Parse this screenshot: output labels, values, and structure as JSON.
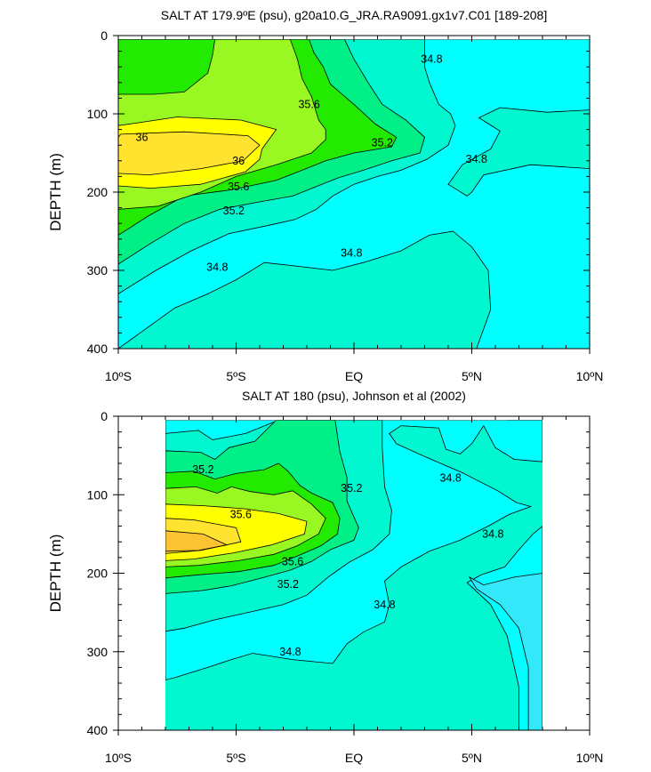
{
  "chart_data": [
    {
      "type": "contour",
      "title": "SALT AT 179.9ºE (psu), g20a10.G_JRA.RA9091.gx1v7.C01 [189-208]",
      "ylabel": "DEPTH (m)",
      "xlabel": "",
      "xlim": [
        -10,
        10
      ],
      "ylim": [
        0,
        400
      ],
      "y_inverted": true,
      "x_ticks": [
        {
          "value": -10,
          "label": "10ºS"
        },
        {
          "value": -5,
          "label": "5ºS"
        },
        {
          "value": 0,
          "label": "EQ"
        },
        {
          "value": 5,
          "label": "5ºN"
        },
        {
          "value": 10,
          "label": "10ºN"
        }
      ],
      "y_ticks": [
        {
          "value": 0,
          "label": "0"
        },
        {
          "value": 100,
          "label": "100"
        },
        {
          "value": 200,
          "label": "200"
        },
        {
          "value": 300,
          "label": "300"
        },
        {
          "value": 400,
          "label": "400"
        }
      ],
      "data_extent": {
        "x": [
          -10,
          10
        ],
        "y": [
          5,
          400
        ]
      },
      "contour_levels": [
        34.6,
        34.8,
        35.0,
        35.2,
        35.4,
        35.6,
        35.8,
        36.0,
        36.2
      ],
      "fill_colors": {
        "34.6": "#33e8f8",
        "34.8": "#00ffff",
        "35.0": "#00f7cf",
        "35.2": "#00f087",
        "35.4": "#22ea00",
        "35.6": "#99f722",
        "35.8": "#ffff00",
        "36.0": "#ffe32e",
        "36.2": "#fbc232"
      },
      "contour_labels": [
        {
          "text": "36",
          "x": -9.0,
          "y": 130
        },
        {
          "text": "36",
          "x": -4.9,
          "y": 160
        },
        {
          "text": "35.6",
          "x": -1.9,
          "y": 88
        },
        {
          "text": "35.6",
          "x": -4.9,
          "y": 193
        },
        {
          "text": "35.2",
          "x": 1.2,
          "y": 137
        },
        {
          "text": "35.2",
          "x": -5.1,
          "y": 224
        },
        {
          "text": "34.8",
          "x": 3.3,
          "y": 30
        },
        {
          "text": "34.8",
          "x": 5.2,
          "y": 158
        },
        {
          "text": "34.8",
          "x": -0.1,
          "y": 278
        },
        {
          "text": "34.8",
          "x": -5.8,
          "y": 296
        }
      ]
    },
    {
      "type": "contour",
      "title": "SALT AT 180 (psu), Johnson et al (2002)",
      "ylabel": "DEPTH (m)",
      "xlabel": "",
      "xlim": [
        -10,
        10
      ],
      "ylim": [
        0,
        400
      ],
      "y_inverted": true,
      "x_ticks": [
        {
          "value": -10,
          "label": "10ºS"
        },
        {
          "value": -5,
          "label": "5ºS"
        },
        {
          "value": 0,
          "label": "EQ"
        },
        {
          "value": 5,
          "label": "5ºN"
        },
        {
          "value": 10,
          "label": "10ºN"
        }
      ],
      "y_ticks": [
        {
          "value": 0,
          "label": "0"
        },
        {
          "value": 100,
          "label": "100"
        },
        {
          "value": 200,
          "label": "200"
        },
        {
          "value": 300,
          "label": "300"
        },
        {
          "value": 400,
          "label": "400"
        }
      ],
      "data_extent": {
        "x": [
          -8,
          8
        ],
        "y": [
          5,
          400
        ]
      },
      "contour_levels": [
        34.6,
        34.8,
        35.0,
        35.2,
        35.4,
        35.6,
        35.8,
        36.0,
        36.2
      ],
      "fill_colors": {
        "34.6": "#33e8f8",
        "34.8": "#00ffff",
        "35.0": "#00f7cf",
        "35.2": "#00f087",
        "35.4": "#22ea00",
        "35.6": "#99f722",
        "35.8": "#ffff00",
        "36.0": "#ffe32e",
        "36.2": "#fbc232"
      },
      "contour_labels": [
        {
          "text": "35.2",
          "x": -6.4,
          "y": 68
        },
        {
          "text": "35.6",
          "x": -4.8,
          "y": 125
        },
        {
          "text": "35.6",
          "x": -2.6,
          "y": 185
        },
        {
          "text": "35.2",
          "x": -2.8,
          "y": 214
        },
        {
          "text": "35.2",
          "x": -0.1,
          "y": 92
        },
        {
          "text": "34.8",
          "x": 4.1,
          "y": 79
        },
        {
          "text": "34.8",
          "x": 5.9,
          "y": 150
        },
        {
          "text": "34.8",
          "x": 1.3,
          "y": 240
        },
        {
          "text": "34.8",
          "x": -2.7,
          "y": 300
        }
      ]
    }
  ]
}
